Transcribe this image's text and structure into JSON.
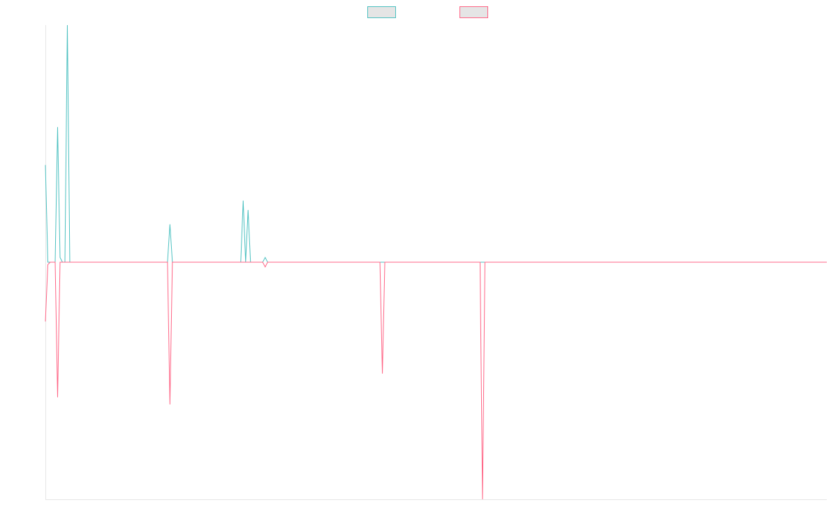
{
  "chart_data": {
    "type": "line",
    "title": "",
    "xlabel": "",
    "ylabel": "",
    "grid": false,
    "legend_position": "top",
    "ylim": [
      -100,
      100
    ],
    "x": [
      0,
      1,
      2,
      3,
      4,
      5,
      6,
      7,
      8,
      9,
      10,
      11,
      12,
      13,
      14,
      15,
      16,
      17,
      18,
      19,
      20,
      21,
      22,
      23,
      24,
      25,
      26,
      27,
      28,
      29,
      30,
      31,
      32,
      33,
      34,
      35,
      36,
      37,
      38,
      39,
      40,
      41,
      42,
      43,
      44,
      45,
      46,
      47,
      48,
      49,
      50,
      51,
      52,
      53,
      54,
      55,
      56,
      57,
      58,
      59,
      60,
      61,
      62,
      63,
      64,
      65,
      66,
      67,
      68,
      69,
      70,
      71,
      72,
      73,
      74,
      75,
      76,
      77,
      78,
      79,
      80,
      81,
      82,
      83,
      84,
      85,
      86,
      87,
      88,
      89,
      90,
      91,
      92,
      93,
      94,
      95,
      96,
      97,
      98,
      99,
      100,
      101,
      102,
      103,
      104,
      105,
      106,
      107,
      108,
      109,
      110,
      111,
      112,
      113,
      114,
      115,
      116,
      117,
      118,
      119,
      120,
      121,
      122,
      123,
      124,
      125,
      126,
      127,
      128,
      129,
      130,
      131,
      132,
      133,
      134,
      135,
      136,
      137,
      138,
      139,
      140,
      141,
      142,
      143,
      144,
      145,
      146,
      147,
      148,
      149,
      150,
      151,
      152,
      153,
      154,
      155,
      156,
      157,
      158,
      159,
      160,
      161,
      162,
      163,
      164,
      165,
      166,
      167,
      168,
      169,
      170,
      171,
      172,
      173,
      174,
      175,
      176,
      177,
      178,
      179,
      180,
      181,
      182,
      183,
      184,
      185,
      186,
      187,
      188,
      189,
      190,
      191,
      192,
      193,
      194,
      195,
      196,
      197,
      198,
      199,
      200,
      201,
      202,
      203,
      204,
      205,
      206,
      207,
      208,
      209,
      210,
      211,
      212,
      213,
      214,
      215,
      216,
      217,
      218,
      219,
      220,
      221,
      222,
      223,
      224,
      225,
      226,
      227,
      228,
      229,
      230,
      231,
      232,
      233,
      234,
      235,
      236,
      237,
      238,
      239,
      240,
      241,
      242,
      243,
      244,
      245,
      246,
      247,
      248,
      249,
      250,
      251,
      252,
      253,
      254,
      255,
      256,
      257,
      258,
      259,
      260,
      261,
      262,
      263,
      264,
      265,
      266,
      267,
      268,
      269,
      270,
      271,
      272,
      273,
      274,
      275,
      276,
      277,
      278,
      279,
      280,
      281,
      282,
      283,
      284,
      285,
      286,
      287,
      288,
      289,
      290,
      291,
      292,
      293,
      294,
      295,
      296,
      297,
      298,
      299,
      300,
      301,
      302,
      303,
      304,
      305,
      306,
      307,
      308,
      309,
      310,
      311,
      312,
      313,
      314,
      315,
      316,
      317,
      318,
      319,
      320
    ],
    "series": [
      {
        "color": "#4bc0c0",
        "sparse_values": {
          "0": 41,
          "2": 0,
          "3": 0,
          "5": 57,
          "6": 2,
          "7": 0,
          "9": 100,
          "10": 0,
          "51": 16,
          "52": 0,
          "81": 26,
          "82": 0,
          "83": 22,
          "84": 0,
          "90": 2,
          "91": 0
        }
      },
      {
        "color": "#ff6384",
        "sparse_values": {
          "0": -25,
          "1": -1,
          "2": 0,
          "4": 0,
          "5": -57,
          "6": 0,
          "51": -60,
          "52": 0,
          "90": -2,
          "91": 0,
          "138": -47,
          "139": 0,
          "179": -100,
          "180": 0
        }
      }
    ]
  }
}
